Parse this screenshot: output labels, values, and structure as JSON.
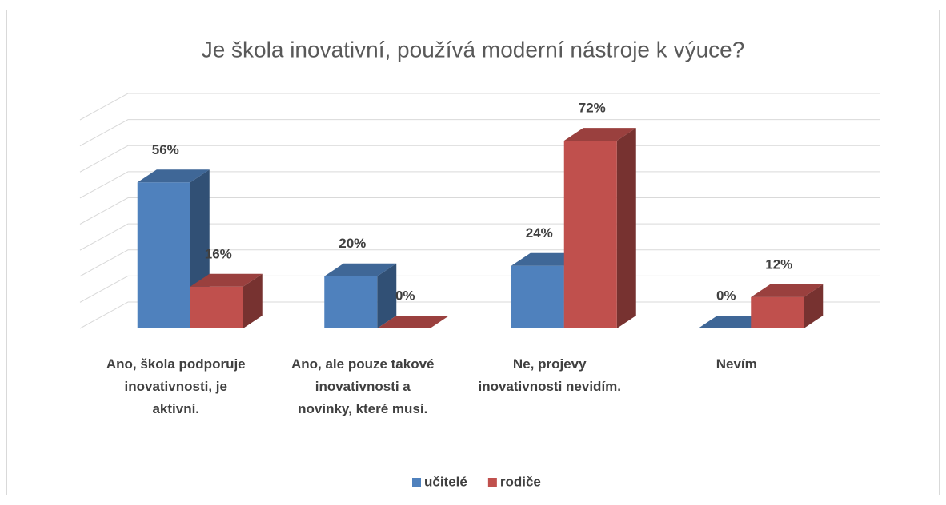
{
  "chart_data": {
    "type": "bar3d",
    "title": "Je škola inovativní, používá moderní nástroje k výuce?",
    "categories": [
      "Ano, škola podporuje inovativnosti, je aktivní.",
      "Ano, ale pouze takové inovativnosti a novinky, které musí.",
      "Ne, projevy inovativnosti nevidím.",
      "Nevím"
    ],
    "series": [
      {
        "name": "učitelé",
        "color": "#4f81bd",
        "values": [
          56,
          20,
          24,
          0
        ],
        "value_labels": [
          "56%",
          "20%",
          "24%",
          "0%"
        ]
      },
      {
        "name": "rodiče",
        "color": "#c0504d",
        "values": [
          16,
          0,
          72,
          12
        ],
        "value_labels": [
          "16%",
          "0%",
          "72%",
          "12%"
        ]
      }
    ],
    "ylim": [
      0,
      80
    ],
    "yticks": [
      0,
      10,
      20,
      30,
      40,
      50,
      60,
      70,
      80
    ],
    "grid": true,
    "legend": "bottom"
  }
}
